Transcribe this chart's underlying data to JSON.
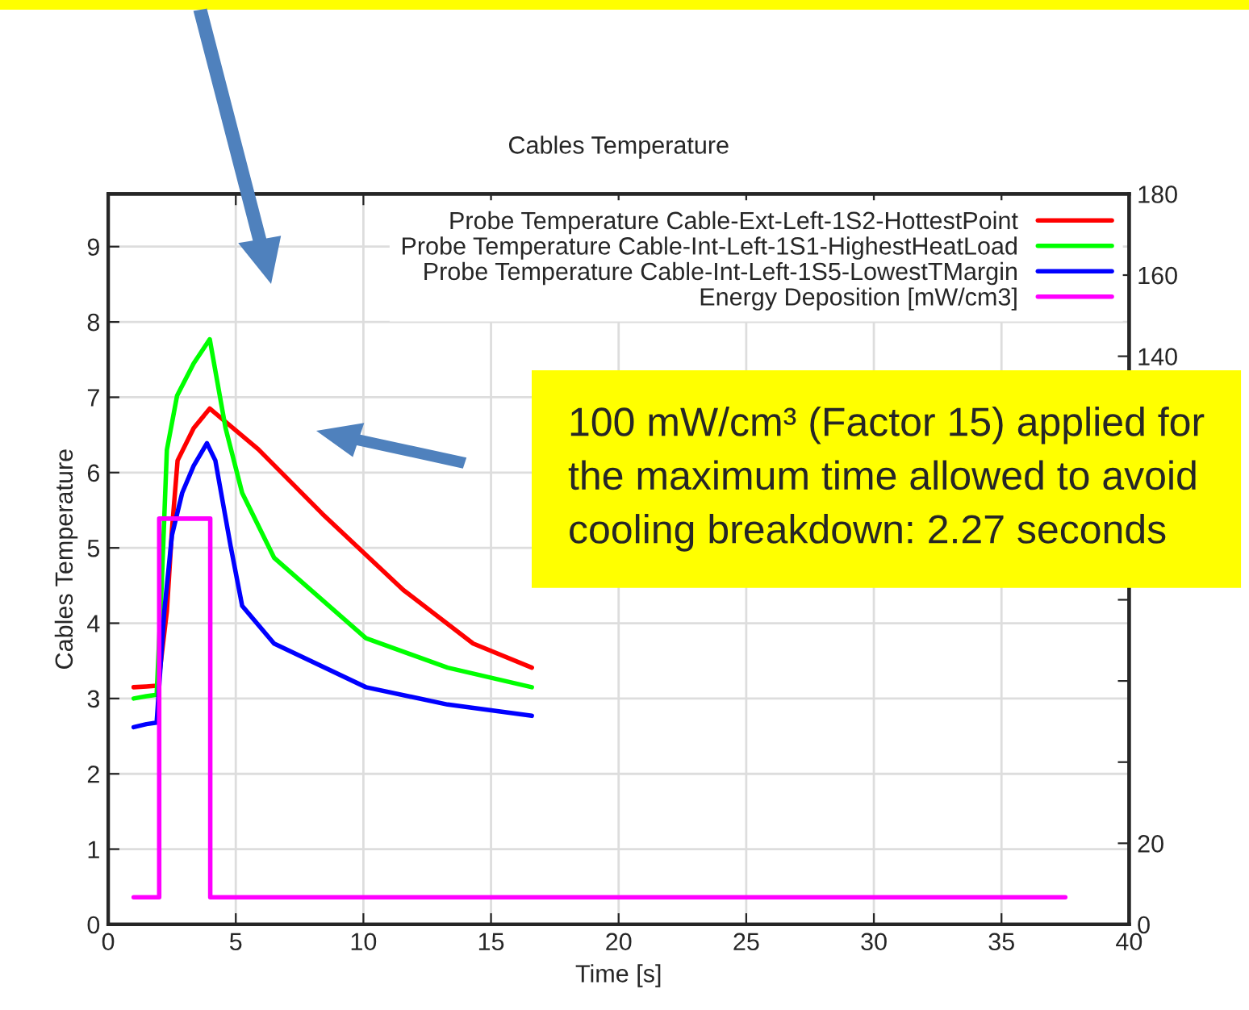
{
  "chart_data": {
    "type": "line",
    "title": "Cables Temperature",
    "xlabel": "Time [s]",
    "ylabel": "Cables Temperature",
    "xlim": [
      0,
      40
    ],
    "xticks": [
      0,
      5,
      10,
      15,
      20,
      25,
      30,
      35,
      40
    ],
    "ylim": [
      0,
      9.7
    ],
    "yticks": [
      0,
      1,
      2,
      3,
      4,
      5,
      6,
      7,
      8,
      9
    ],
    "y2lim": [
      0,
      180
    ],
    "y2ticks": [
      0,
      20,
      {
        "value": 40,
        "label": null
      },
      {
        "value": 60,
        "label": null
      },
      {
        "value": 80,
        "label": null
      },
      {
        "value": 100,
        "label": null
      },
      {
        "value": 120,
        "label": null
      },
      140,
      160,
      180
    ],
    "grid": true,
    "legend": "top right",
    "line_style": "solid",
    "annotations": [
      "100 mW/cm³ (Factor 15) applied for the maximum time allowed to avoid cooling breakdown: 2.27 seconds"
    ],
    "series": [
      {
        "name": "Probe Temperature Cable-Ext-Left-1S2-HottestPoint",
        "color": "#ff0000",
        "x": [
          1,
          1.5,
          1.9,
          2.0,
          2.3,
          2.5,
          2.72,
          3.35,
          3.98,
          5.88,
          8.4,
          11.57,
          14.3,
          16.6
        ],
        "values": [
          3.15,
          3.16,
          3.17,
          3.3,
          4.16,
          5.24,
          6.16,
          6.59,
          6.85,
          6.31,
          5.45,
          4.44,
          3.73,
          3.41
        ]
      },
      {
        "name": "Probe Temperature Cable-Int-Left-1S1-HighestHeatLoad",
        "color": "#00ff00",
        "x": [
          1,
          1.5,
          1.9,
          2.1,
          2.3,
          2.7,
          3.35,
          3.98,
          4.6,
          5.25,
          6.5,
          10.1,
          13.3,
          16.6
        ],
        "values": [
          3.0,
          3.03,
          3.05,
          4.53,
          6.3,
          7.02,
          7.45,
          7.77,
          6.59,
          5.73,
          4.87,
          3.8,
          3.41,
          3.15
        ]
      },
      {
        "name": "Probe Temperature Cable-Int-Left-1S5-LowestTMargin",
        "color": "#0000ff",
        "x": [
          1,
          1.5,
          1.9,
          2.2,
          2.5,
          2.9,
          3.35,
          3.87,
          4.2,
          4.8,
          5.25,
          6.5,
          10.1,
          13.3,
          16.6
        ],
        "values": [
          2.62,
          2.66,
          2.68,
          4.16,
          5.17,
          5.73,
          6.09,
          6.39,
          6.16,
          5.02,
          4.23,
          3.73,
          3.15,
          2.92,
          2.77
        ]
      },
      {
        "name": "Energy Deposition [mW/cm3]",
        "color": "#ff00ff",
        "axis": "y2",
        "x": [
          1,
          2,
          2,
          4,
          4,
          37.5
        ],
        "values": [
          6.7,
          6.7,
          100,
          100,
          6.7,
          6.7
        ]
      }
    ]
  }
}
